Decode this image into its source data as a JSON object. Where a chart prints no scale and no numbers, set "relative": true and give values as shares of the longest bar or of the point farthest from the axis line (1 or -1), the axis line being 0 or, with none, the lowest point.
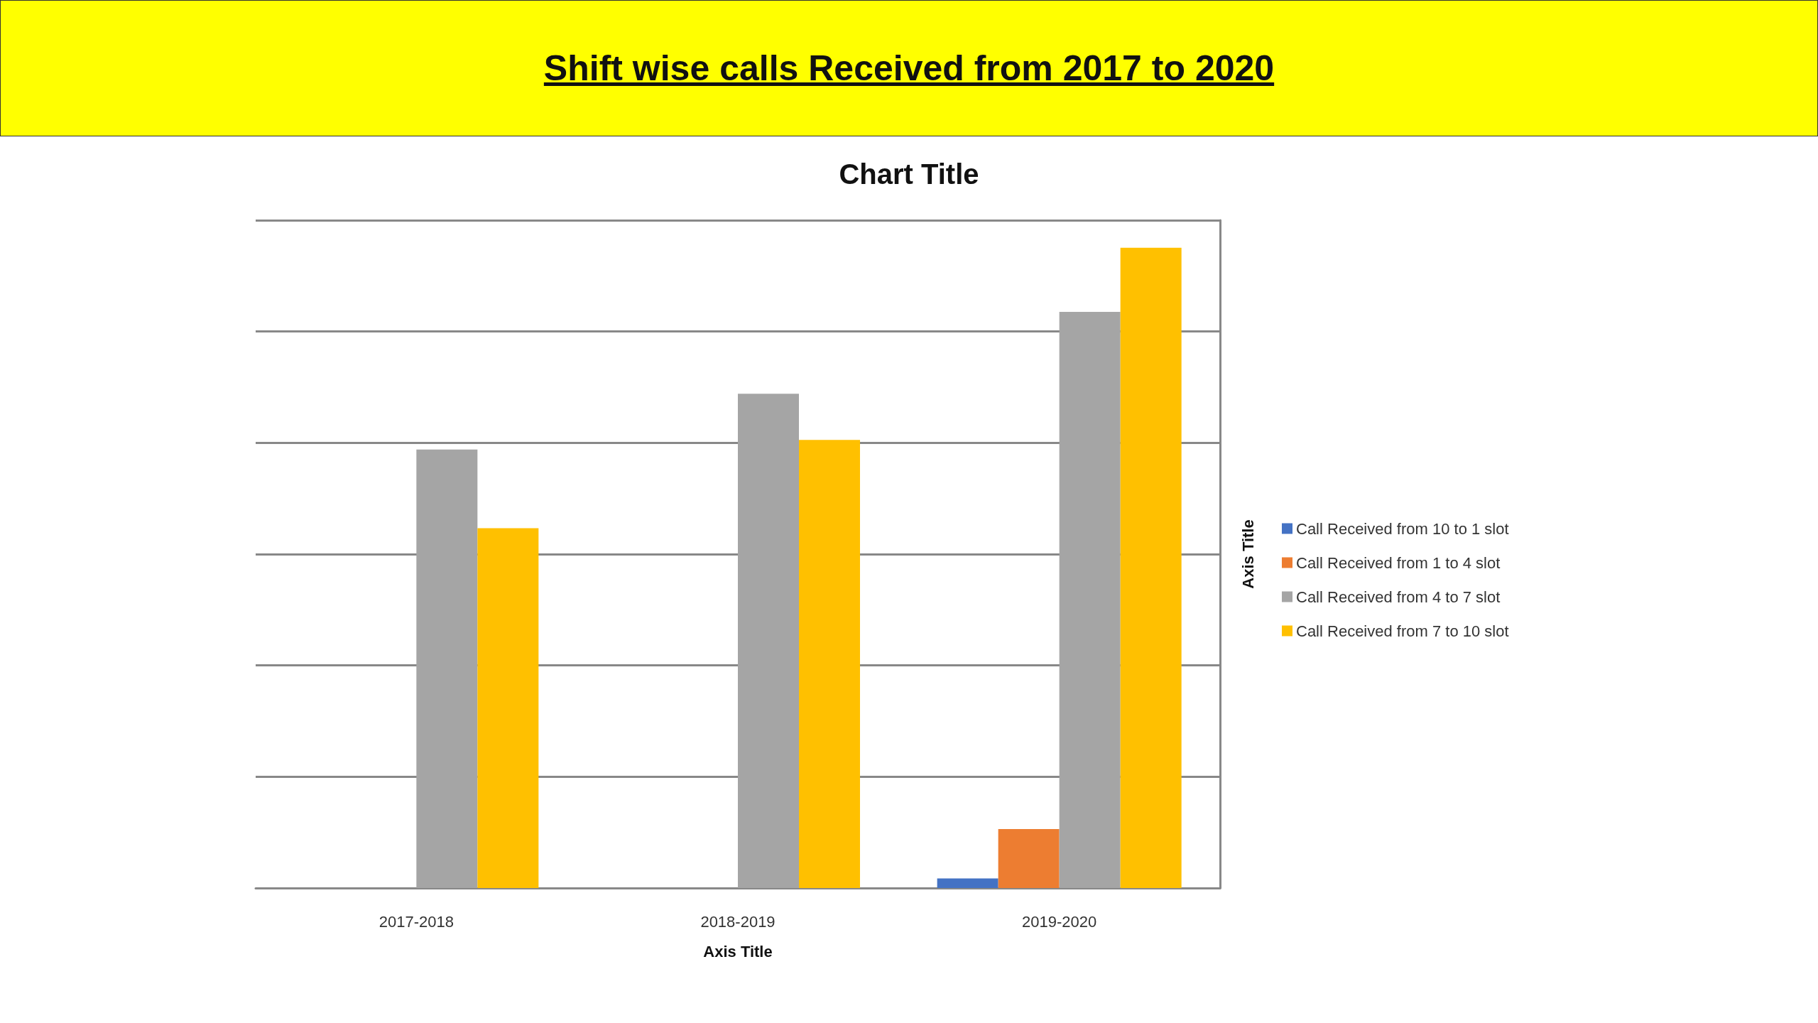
{
  "chart_data": {
    "type": "bar",
    "title": "Shift wise calls Received from 2017 to 2020",
    "subtitle": "Chart Title",
    "xlabel": "Axis Title",
    "ylabel": "Axis Title",
    "categories": [
      "2017-2018",
      "2018-2019",
      "2019-2020"
    ],
    "relative": true,
    "grid": "y",
    "legend": "right",
    "series": [
      {
        "name": "Call Received from 10 to 1 slot",
        "color": "#4472c4",
        "values": [
          0,
          0,
          0.015
        ]
      },
      {
        "name": "Call Received from 1 to 4 slot",
        "color": "#ed7d31",
        "values": [
          0,
          0,
          0.092
        ]
      },
      {
        "name": "Call Received from 4 to 7 slot",
        "color": "#a5a5a5",
        "values": [
          0.685,
          0.772,
          0.9
        ]
      },
      {
        "name": "Call Received from 7 to 10 slot",
        "color": "#ffc000",
        "values": [
          0.562,
          0.7,
          1
        ]
      }
    ]
  }
}
